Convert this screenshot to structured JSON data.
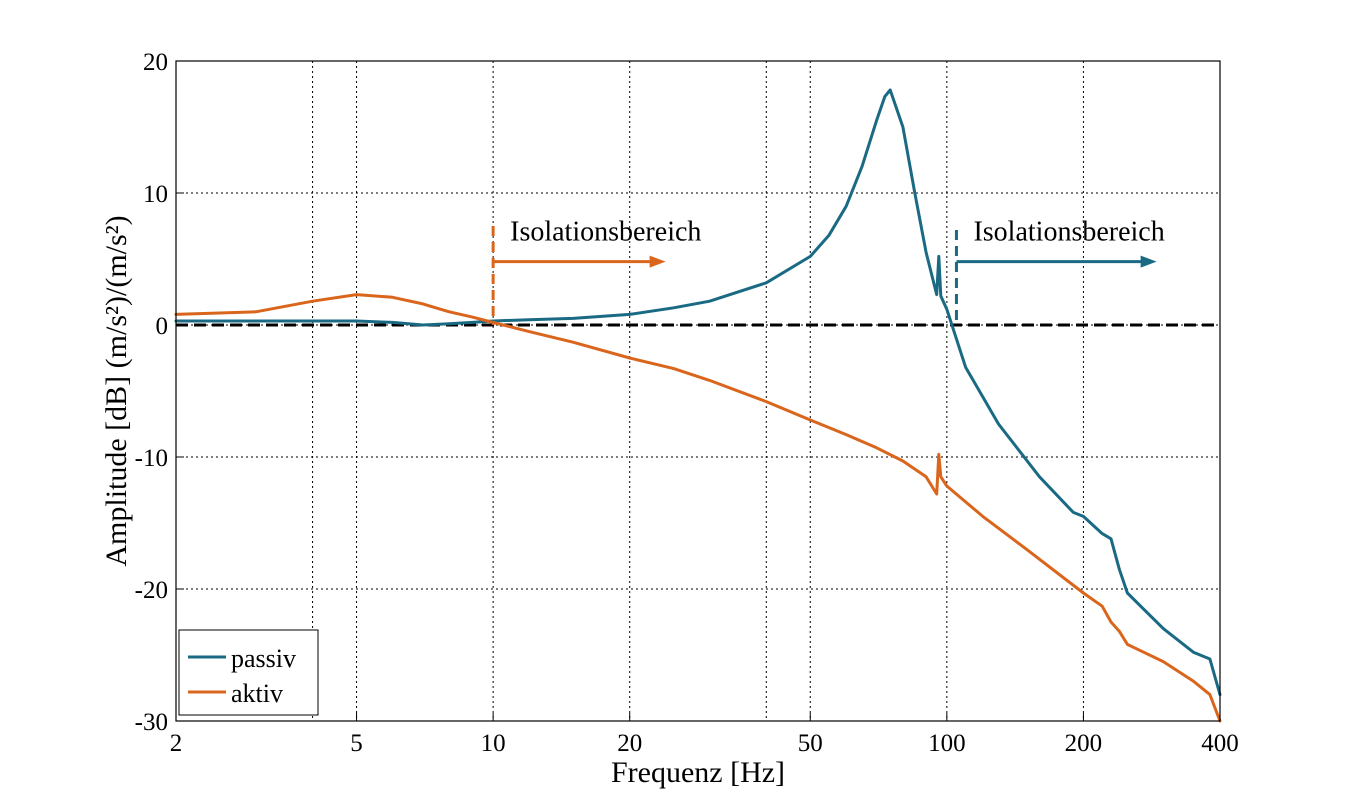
{
  "chart_data": {
    "type": "line",
    "xscale": "log",
    "xlim": [
      2,
      400
    ],
    "ylim": [
      -30,
      20
    ],
    "grid": true,
    "xlabel": "Frequenz [Hz]",
    "ylabel": "Amplitude [dB] (m/s²)/(m/s²)",
    "xticks": [
      2,
      5,
      10,
      20,
      50,
      100,
      200,
      400
    ],
    "xtick_labels": [
      "2",
      "5",
      "10",
      "20",
      "50",
      "100",
      "200",
      "400"
    ],
    "yticks": [
      20,
      10,
      0,
      -10,
      -20,
      -30
    ],
    "ytick_labels": [
      "20",
      "10",
      "0",
      "-10",
      "-20",
      "-30"
    ],
    "legend_position": "bottom-left",
    "reference_line_db": 0,
    "colors": {
      "passiv": "#1a6a84",
      "aktiv": "#d9661c",
      "reference": "#000000"
    },
    "series": [
      {
        "name": "passiv",
        "x": [
          2,
          3,
          4,
          5,
          6,
          7,
          8,
          9,
          10,
          12,
          15,
          20,
          25,
          30,
          40,
          50,
          55,
          60,
          65,
          70,
          73,
          75,
          80,
          85,
          90,
          95,
          96,
          97,
          100,
          110,
          130,
          160,
          190,
          200,
          220,
          230,
          240,
          250,
          300,
          350,
          380,
          400
        ],
        "y": [
          0.3,
          0.3,
          0.3,
          0.3,
          0.2,
          0.0,
          0.1,
          0.2,
          0.3,
          0.4,
          0.5,
          0.8,
          1.3,
          1.8,
          3.2,
          5.2,
          6.8,
          9.0,
          12.0,
          15.5,
          17.3,
          17.8,
          15.0,
          10.0,
          5.5,
          2.3,
          5.2,
          2.2,
          1.2,
          -3.2,
          -7.5,
          -11.5,
          -14.2,
          -14.5,
          -15.8,
          -16.2,
          -18.5,
          -20.3,
          -23.0,
          -24.8,
          -25.3,
          -28.0
        ]
      },
      {
        "name": "aktiv",
        "x": [
          2,
          3,
          4,
          5,
          6,
          7,
          8,
          9,
          10,
          12,
          15,
          20,
          25,
          30,
          40,
          50,
          60,
          70,
          80,
          90,
          95,
          96,
          97,
          100,
          120,
          150,
          200,
          220,
          230,
          240,
          250,
          300,
          350,
          380,
          400
        ],
        "y": [
          0.8,
          1.0,
          1.8,
          2.3,
          2.1,
          1.6,
          1.0,
          0.6,
          0.2,
          -0.5,
          -1.3,
          -2.5,
          -3.3,
          -4.2,
          -5.8,
          -7.2,
          -8.3,
          -9.3,
          -10.3,
          -11.5,
          -12.8,
          -9.8,
          -11.5,
          -12.2,
          -14.5,
          -17.0,
          -20.3,
          -21.3,
          -22.5,
          -23.2,
          -24.2,
          -25.5,
          -27.0,
          -28.0,
          -30.0
        ]
      }
    ],
    "annotations": [
      {
        "text": "Isolationsbereich",
        "color": "#d9661c",
        "marker_x": 10,
        "arrow_to_x": 24,
        "direction": "right"
      },
      {
        "text": "Isolationsbereich",
        "color": "#1a6a84",
        "marker_x": 105,
        "arrow_to_x": 290,
        "direction": "right"
      }
    ]
  }
}
